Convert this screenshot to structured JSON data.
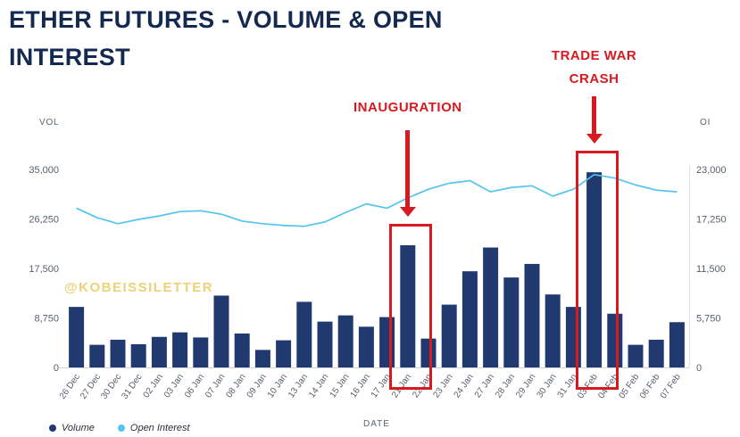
{
  "watermark": "@KOBEISSILETTER",
  "annotations": {
    "color": "#d71920",
    "items": [
      {
        "label": "INAUGURATION",
        "category": "21 Jan"
      },
      {
        "label": "TRADE WAR CRASH",
        "category": "03 Feb"
      }
    ]
  },
  "chart_data": {
    "type": "bar",
    "title": "ETHER FUTURES - VOLUME & OPEN INTEREST",
    "xlabel": "DATE",
    "grid": false,
    "legend_position": "bottom-left",
    "categories": [
      "26 Dec",
      "27 Dec",
      "30 Dec",
      "31 Dec",
      "02 Jan",
      "03 Jan",
      "06 Jan",
      "07 Jan",
      "08 Jan",
      "09 Jan",
      "10 Jan",
      "13 Jan",
      "14 Jan",
      "15 Jan",
      "16 Jan",
      "17 Jan",
      "21 Jan",
      "22 Jan",
      "23 Jan",
      "24 Jan",
      "27 Jan",
      "28 Jan",
      "29 Jan",
      "30 Jan",
      "31 Jan",
      "03 Feb",
      "04 Feb",
      "05 Feb",
      "06 Feb",
      "07 Feb"
    ],
    "series": [
      {
        "name": "Volume",
        "type": "bar",
        "axis": "left",
        "color": "#203a70",
        "values": [
          10700,
          4000,
          4900,
          4100,
          5400,
          6200,
          5300,
          12700,
          6000,
          3100,
          4800,
          11600,
          8100,
          9200,
          7200,
          8900,
          21600,
          5100,
          11100,
          17000,
          21200,
          15900,
          18300,
          12900,
          10700,
          34500,
          9500,
          4000,
          4900,
          8000
        ]
      },
      {
        "name": "Open Interest",
        "type": "line",
        "axis": "right",
        "color": "#55c3ef",
        "values": [
          18500,
          17400,
          16700,
          17200,
          17600,
          18100,
          18200,
          17800,
          17000,
          16700,
          16500,
          16400,
          16900,
          18000,
          19000,
          18500,
          19700,
          20700,
          21400,
          21700,
          20400,
          20900,
          21100,
          19900,
          20700,
          22400,
          22000,
          21200,
          20600,
          20400
        ]
      }
    ],
    "y_left": {
      "label": "VOL",
      "max": 35000,
      "ylim": [
        0,
        35000
      ],
      "ticks": [
        "35,000",
        "26,250",
        "17,500",
        "8,750",
        "0"
      ]
    },
    "y_right": {
      "label": "OI",
      "max": 23000,
      "ylim": [
        0,
        23000
      ],
      "ticks": [
        "23,000",
        "17,250",
        "11,500",
        "5,750",
        "0"
      ]
    }
  }
}
